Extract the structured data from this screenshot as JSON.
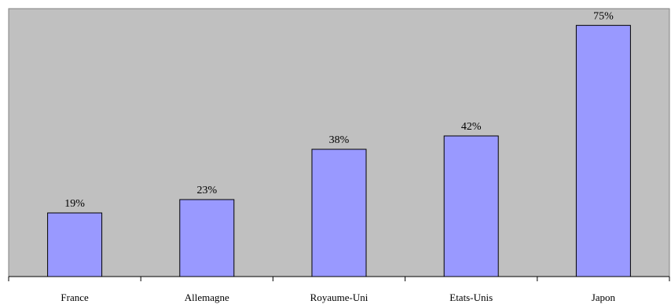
{
  "chart_data": {
    "type": "bar",
    "title": "",
    "xlabel": "",
    "ylabel": "",
    "categories": [
      "France",
      "Allemagne",
      "Royaume-Uni",
      "Etats-Unis",
      "Japon"
    ],
    "values": [
      19,
      23,
      38,
      42,
      75
    ],
    "value_labels": [
      "19%",
      "23%",
      "38%",
      "42%",
      "75%"
    ],
    "ylim": [
      0,
      80
    ],
    "grid": false,
    "legend": "none",
    "colors": {
      "plot_background": "#c0c0c0",
      "bar_fill": "#9999ff",
      "bar_stroke": "#000000",
      "axis": "#000000",
      "frame": "#808080"
    }
  }
}
